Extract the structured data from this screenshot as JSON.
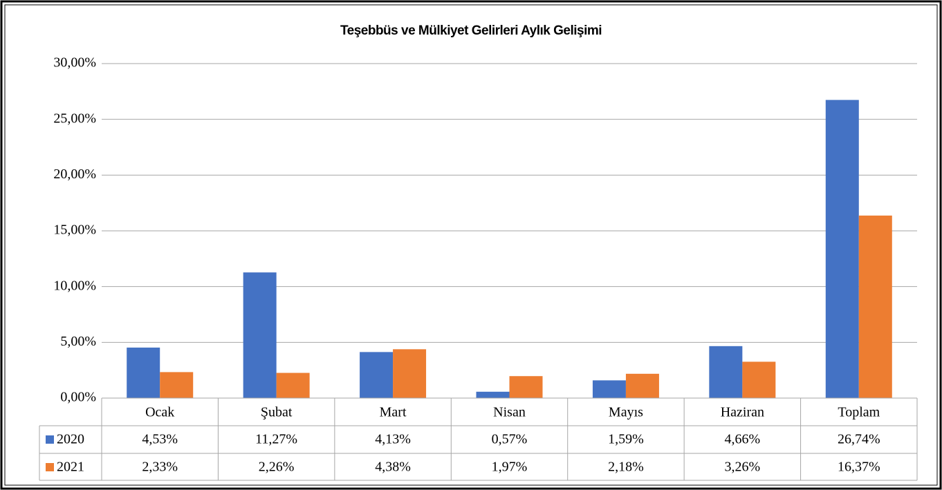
{
  "chart_data": {
    "type": "bar",
    "title": "Teşebbüs ve Mülkiyet Gelirleri Aylık Gelişimi",
    "categories": [
      "Ocak",
      "Şubat",
      "Mart",
      "Nisan",
      "Mayıs",
      "Haziran",
      "Toplam"
    ],
    "series": [
      {
        "name": "2020",
        "color": "#4472c4",
        "values": [
          4.53,
          11.27,
          4.13,
          0.57,
          1.59,
          4.66,
          26.74
        ],
        "value_labels": [
          "4,53%",
          "11,27%",
          "4,13%",
          "0,57%",
          "1,59%",
          "4,66%",
          "26,74%"
        ]
      },
      {
        "name": "2021",
        "color": "#ed7d31",
        "values": [
          2.33,
          2.26,
          4.38,
          1.97,
          2.18,
          3.26,
          16.37
        ],
        "value_labels": [
          "2,33%",
          "2,26%",
          "4,38%",
          "1,97%",
          "2,18%",
          "3,26%",
          "16,37%"
        ]
      }
    ],
    "ylim": [
      0,
      30
    ],
    "yticks": [
      {
        "value": 0,
        "label": "0,00%"
      },
      {
        "value": 5,
        "label": "5,00%"
      },
      {
        "value": 10,
        "label": "10,00%"
      },
      {
        "value": 15,
        "label": "15,00%"
      },
      {
        "value": 20,
        "label": "20,00%"
      },
      {
        "value": 25,
        "label": "25,00%"
      },
      {
        "value": 30,
        "label": "30,00%"
      }
    ],
    "grid": true
  }
}
